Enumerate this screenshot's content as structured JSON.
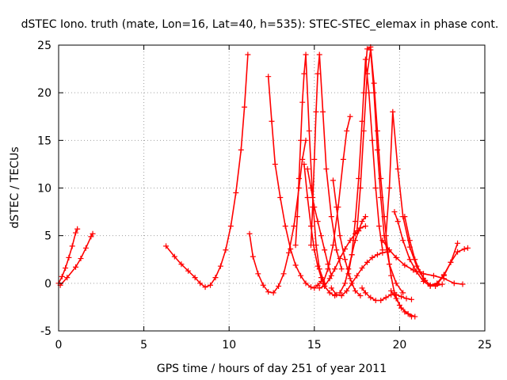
{
  "chart_data": {
    "type": "scatter",
    "title": "dSTEC Iono. truth (mate, Lon=16, Lat=40, h=535): STEC-STEC_elemax in phase cont.",
    "xlabel": "GPS time / hours of day 251 of year 2011",
    "ylabel": "dSTEC  / TECUs",
    "xlim": [
      0,
      25
    ],
    "ylim": [
      -5,
      25
    ],
    "xticks": [
      0,
      5,
      10,
      15,
      20,
      25
    ],
    "yticks": [
      -5,
      0,
      5,
      10,
      15,
      20,
      25
    ],
    "grid": true,
    "marker": "plus",
    "color": "#ff0000",
    "series": [
      {
        "x": [
          0.0,
          0.2,
          0.4,
          0.6,
          0.8,
          1.0,
          1.1
        ],
        "y": [
          0.0,
          0.7,
          1.6,
          2.7,
          3.9,
          5.3,
          5.7
        ]
      },
      {
        "x": [
          0.1,
          0.5,
          1.0,
          1.3,
          1.6,
          1.9,
          2.0
        ],
        "y": [
          -0.2,
          0.6,
          1.7,
          2.6,
          3.7,
          4.9,
          5.2
        ]
      },
      {
        "x": [
          6.3,
          6.8,
          7.2,
          7.6,
          8.0,
          8.3,
          8.6,
          8.9,
          9.2,
          9.5,
          9.8,
          10.1,
          10.4,
          10.7,
          10.9,
          11.1
        ],
        "y": [
          3.9,
          2.8,
          2.0,
          1.3,
          0.6,
          0.0,
          -0.4,
          -0.2,
          0.6,
          1.8,
          3.5,
          6.0,
          9.5,
          14.0,
          18.5,
          24.0
        ]
      },
      {
        "x": [
          11.2,
          11.4,
          11.7,
          12.0,
          12.3,
          12.6,
          12.9,
          13.2,
          13.5,
          13.8,
          14.1,
          14.3,
          14.5
        ],
        "y": [
          5.2,
          2.8,
          1.0,
          -0.2,
          -0.9,
          -1.0,
          -0.3,
          1.0,
          3.2,
          6.0,
          10.0,
          13.0,
          15.0
        ]
      },
      {
        "x": [
          12.3,
          12.5,
          12.7,
          13.0,
          13.3,
          13.6,
          13.9,
          14.2,
          14.5,
          14.8,
          15.0,
          15.2,
          15.4
        ],
        "y": [
          21.7,
          17.0,
          12.5,
          9.0,
          6.0,
          3.6,
          1.9,
          0.8,
          0.0,
          -0.4,
          -0.5,
          -0.2,
          0.2
        ]
      },
      {
        "x": [
          13.9,
          14.0,
          14.1,
          14.2,
          14.3,
          14.4,
          14.5,
          14.7,
          14.9,
          15.1,
          15.3,
          15.6
        ],
        "y": [
          4.0,
          7.0,
          11.0,
          15.0,
          19.0,
          22.0,
          24.0,
          16.0,
          9.0,
          4.0,
          1.5,
          0.0
        ]
      },
      {
        "x": [
          14.4,
          14.6,
          14.8,
          15.0,
          15.2,
          15.4,
          15.6,
          15.9,
          16.2
        ],
        "y": [
          12.5,
          9.0,
          6.0,
          3.5,
          1.8,
          0.6,
          -0.3,
          -1.0,
          -1.3
        ]
      },
      {
        "x": [
          14.8,
          14.9,
          15.0,
          15.1,
          15.2,
          15.3,
          15.5,
          15.7,
          16.0,
          16.3,
          16.6
        ],
        "y": [
          4.0,
          8.0,
          13.0,
          18.0,
          22.0,
          24.0,
          18.0,
          12.0,
          7.0,
          3.5,
          1.5
        ]
      },
      {
        "x": [
          14.6,
          14.8,
          15.0,
          15.2,
          15.4,
          15.6,
          15.8,
          16.0
        ],
        "y": [
          12.0,
          10.0,
          8.0,
          6.5,
          5.0,
          3.5,
          2.0,
          0.8
        ]
      },
      {
        "x": [
          15.3,
          15.6,
          15.9,
          16.2,
          16.5,
          16.8,
          17.1,
          17.4,
          17.7,
          18.0
        ],
        "y": [
          -0.5,
          -0.3,
          0.5,
          1.5,
          2.6,
          3.6,
          4.5,
          5.2,
          5.8,
          6.0
        ]
      },
      {
        "x": [
          15.5,
          15.8,
          16.1,
          16.4,
          16.7,
          16.9,
          17.1
        ],
        "y": [
          0.0,
          1.5,
          4.0,
          8.0,
          13.0,
          16.0,
          17.5
        ]
      },
      {
        "x": [
          16.1,
          16.3,
          16.5,
          16.8,
          17.1,
          17.4,
          17.7
        ],
        "y": [
          10.8,
          8.0,
          5.0,
          2.5,
          0.5,
          -0.8,
          -1.3
        ]
      },
      {
        "x": [
          16.0,
          16.3,
          16.6,
          16.9,
          17.2,
          17.5,
          17.8,
          18.1,
          18.4,
          18.7,
          19.0,
          19.3
        ],
        "y": [
          -0.5,
          -1.2,
          -1.3,
          -0.8,
          0.0,
          0.8,
          1.6,
          2.2,
          2.7,
          3.0,
          3.2,
          3.3
        ]
      },
      {
        "x": [
          16.5,
          16.8,
          17.0,
          17.2,
          17.4,
          17.6,
          17.8,
          18.0
        ],
        "y": [
          -1.0,
          0.0,
          1.5,
          3.0,
          4.5,
          5.5,
          6.5,
          7.0
        ]
      },
      {
        "x": [
          17.0,
          17.2,
          17.4,
          17.6,
          17.8,
          18.0,
          18.2,
          18.4,
          18.6,
          18.8,
          19.0
        ],
        "y": [
          1.0,
          3.0,
          6.5,
          11.0,
          17.0,
          23.5,
          20.0,
          15.0,
          10.0,
          6.0,
          3.5
        ]
      },
      {
        "x": [
          17.5,
          17.7,
          17.9,
          18.1,
          18.3,
          18.5,
          18.7,
          18.9,
          19.1,
          19.4,
          19.8,
          20.2
        ],
        "y": [
          5.5,
          10.0,
          16.0,
          22.0,
          24.5,
          20.0,
          14.0,
          9.0,
          5.0,
          2.0,
          0.0,
          -1.0
        ]
      },
      {
        "x": [
          17.9,
          18.1,
          18.3,
          18.5,
          18.7,
          18.9,
          19.1,
          19.3,
          19.5,
          19.7,
          20.0,
          20.3,
          20.7
        ],
        "y": [
          20.0,
          24.6,
          24.8,
          21.0,
          16.0,
          11.0,
          7.0,
          3.5,
          0.8,
          -1.0,
          -2.3,
          -3.0,
          -3.5
        ]
      },
      {
        "x": [
          17.8,
          18.0,
          18.3,
          18.6,
          18.9,
          19.2,
          19.5,
          19.8,
          20.1,
          20.4,
          20.7
        ],
        "y": [
          -0.5,
          -1.0,
          -1.5,
          -1.8,
          -1.8,
          -1.5,
          -1.2,
          -1.2,
          -1.4,
          -1.6,
          -1.7
        ]
      },
      {
        "x": [
          19.2,
          19.4,
          19.6,
          19.9,
          20.2,
          20.6,
          21.0,
          21.4,
          21.8,
          22.2,
          22.6,
          23.0,
          23.4,
          23.8,
          24.0
        ],
        "y": [
          5.0,
          10.0,
          18.0,
          12.0,
          7.0,
          3.8,
          1.8,
          0.5,
          -0.2,
          0.0,
          0.9,
          2.2,
          3.3,
          3.6,
          3.7
        ]
      },
      {
        "x": [
          19.7,
          19.9,
          20.2,
          20.6,
          21.0,
          21.4,
          21.8,
          22.2,
          22.6,
          23.0,
          23.4
        ],
        "y": [
          7.5,
          6.5,
          4.5,
          2.5,
          1.2,
          0.2,
          -0.3,
          -0.1,
          0.8,
          2.2,
          4.2
        ]
      },
      {
        "x": [
          19.0,
          19.4,
          19.8,
          20.3,
          20.8,
          21.4,
          22.0,
          22.6,
          23.2,
          23.7
        ],
        "y": [
          4.5,
          3.5,
          2.7,
          1.9,
          1.4,
          1.0,
          0.8,
          0.5,
          0.0,
          -0.1
        ]
      },
      {
        "x": [
          20.3,
          20.6,
          20.9,
          21.2,
          21.5,
          21.8,
          22.1,
          22.5
        ],
        "y": [
          7.0,
          4.5,
          2.5,
          1.2,
          0.3,
          -0.2,
          -0.3,
          -0.1
        ]
      },
      {
        "x": [
          19.5,
          19.8,
          20.1,
          20.5,
          20.9
        ],
        "y": [
          -0.8,
          -1.6,
          -2.6,
          -3.2,
          -3.5
        ]
      }
    ]
  }
}
